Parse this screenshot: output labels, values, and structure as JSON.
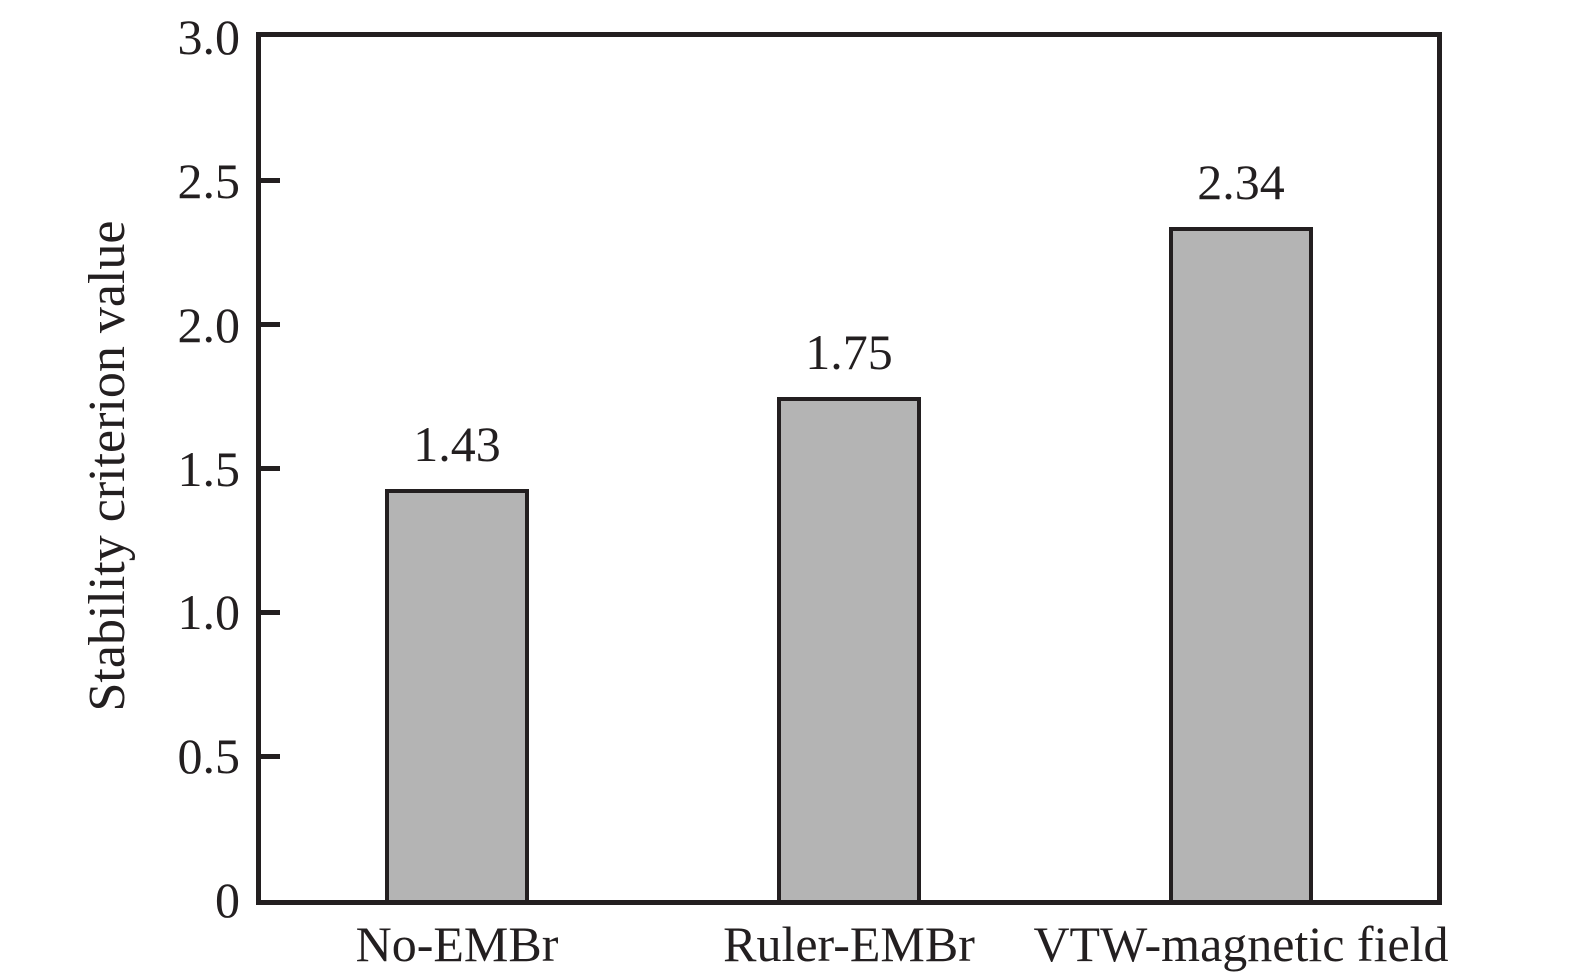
{
  "colors": {
    "bar_fill": "#b4b4b4",
    "axis_line": "#231f20",
    "text": "#231f20",
    "background": "#ffffff"
  },
  "chart_data": {
    "type": "bar",
    "title": "",
    "categories": [
      "No-EMBr",
      "Ruler-EMBr",
      "VTW-magnetic field"
    ],
    "values": [
      1.43,
      1.75,
      2.34
    ],
    "bar_value_labels": [
      "1.43",
      "1.75",
      "2.34"
    ],
    "xlabel": "",
    "ylabel": "Stability criterion value",
    "ylim": [
      0,
      3.0
    ],
    "yticks": [
      {
        "label": "3.0",
        "value": 3.0
      },
      {
        "label": "2.5",
        "value": 2.5
      },
      {
        "label": "2.0",
        "value": 2.0
      },
      {
        "label": "1.5",
        "value": 1.5
      },
      {
        "label": "1.0",
        "value": 1.0
      },
      {
        "label": "0.5",
        "value": 0.5
      },
      {
        "label": "0",
        "value": 0
      }
    ],
    "grid": false,
    "legend_position": "none"
  }
}
